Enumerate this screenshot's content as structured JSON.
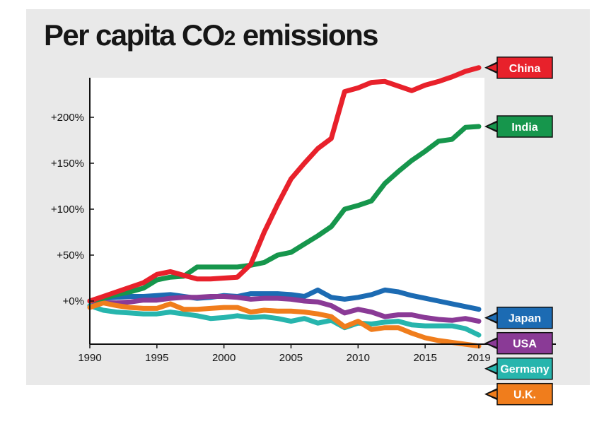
{
  "title_main": "Per capita CO",
  "title_sub": "2",
  "title_end": " emissions",
  "chart_data": {
    "type": "line",
    "title": "Per capita CO2 emissions",
    "xlabel": "",
    "ylabel": "",
    "xlim": [
      1990,
      2019
    ],
    "ylim": [
      -45,
      250
    ],
    "x_ticks": [
      1990,
      1995,
      2000,
      2005,
      2010,
      2015,
      2019
    ],
    "x_tick_labels": [
      "1990",
      "1995",
      "2000",
      "2005",
      "2010",
      "2015",
      "2019"
    ],
    "y_ticks": [
      0,
      50,
      100,
      150,
      200
    ],
    "y_tick_labels": [
      "+0%",
      "+50%",
      "+100%",
      "+150%",
      "+200%"
    ],
    "legend_placement": "right, label at end of each line",
    "series": [
      {
        "name": "China",
        "color": "#e8212b",
        "x": [
          1990,
          1991,
          1992,
          1993,
          1994,
          1995,
          1996,
          1997,
          1998,
          1999,
          2000,
          2001,
          2002,
          2003,
          2004,
          2005,
          2006,
          2007,
          2008,
          2009,
          2010,
          2011,
          2012,
          2013,
          2014,
          2015,
          2016,
          2017,
          2018,
          2019
        ],
        "values": [
          0,
          5,
          10,
          15,
          20,
          29,
          32,
          28,
          24,
          24,
          25,
          26,
          40,
          75,
          105,
          133,
          150,
          166,
          177,
          228,
          232,
          238,
          239,
          234,
          229,
          235,
          239,
          244,
          250,
          254
        ]
      },
      {
        "name": "India",
        "color": "#16964c",
        "x": [
          1990,
          1991,
          1992,
          1993,
          1994,
          1995,
          1996,
          1997,
          1998,
          1999,
          2000,
          2001,
          2002,
          2003,
          2004,
          2005,
          2006,
          2007,
          2008,
          2009,
          2010,
          2011,
          2012,
          2013,
          2014,
          2015,
          2016,
          2017,
          2018,
          2019
        ],
        "values": [
          0,
          3,
          7,
          10,
          14,
          23,
          26,
          27,
          37,
          37,
          37,
          37,
          39,
          42,
          50,
          53,
          62,
          71,
          81,
          100,
          104,
          109,
          128,
          141,
          153,
          163,
          174,
          176,
          189,
          190
        ]
      },
      {
        "name": "Japan",
        "color": "#1c6bb3",
        "x": [
          1990,
          1991,
          1992,
          1993,
          1994,
          1995,
          1996,
          1997,
          1998,
          1999,
          2000,
          2001,
          2002,
          2003,
          2004,
          2005,
          2006,
          2007,
          2008,
          2009,
          2010,
          2011,
          2012,
          2013,
          2014,
          2015,
          2016,
          2017,
          2018,
          2019
        ],
        "values": [
          0,
          3,
          4,
          5,
          5,
          6,
          7,
          5,
          3,
          4,
          6,
          5,
          8,
          8,
          8,
          7,
          5,
          12,
          4,
          2,
          4,
          7,
          12,
          10,
          6,
          3,
          0,
          -3,
          -6,
          -9
        ]
      },
      {
        "name": "USA",
        "color": "#8a3a96",
        "x": [
          1990,
          1991,
          1992,
          1993,
          1994,
          1995,
          1996,
          1997,
          1998,
          1999,
          2000,
          2001,
          2002,
          2003,
          2004,
          2005,
          2006,
          2007,
          2008,
          2009,
          2010,
          2011,
          2012,
          2013,
          2014,
          2015,
          2016,
          2017,
          2018,
          2019
        ],
        "values": [
          0,
          -2,
          -2,
          -1,
          1,
          1,
          3,
          4,
          4,
          5,
          5,
          4,
          2,
          3,
          3,
          2,
          0,
          -1,
          -5,
          -13,
          -9,
          -12,
          -17,
          -15,
          -15,
          -18,
          -20,
          -21,
          -19,
          -22
        ]
      },
      {
        "name": "Germany",
        "color": "#27b5ad",
        "x": [
          1990,
          1991,
          1992,
          1993,
          1994,
          1995,
          1996,
          1997,
          1998,
          1999,
          2000,
          2001,
          2002,
          2003,
          2004,
          2005,
          2006,
          2007,
          2008,
          2009,
          2010,
          2011,
          2012,
          2013,
          2014,
          2015,
          2016,
          2017,
          2018,
          2019
        ],
        "values": [
          -5,
          -10,
          -12,
          -13,
          -14,
          -14,
          -12,
          -14,
          -16,
          -19,
          -18,
          -16,
          -18,
          -17,
          -19,
          -22,
          -19,
          -24,
          -21,
          -29,
          -24,
          -25,
          -23,
          -22,
          -26,
          -27,
          -27,
          -27,
          -30,
          -37
        ]
      },
      {
        "name": "U.K.",
        "color": "#f07d1c",
        "x": [
          1990,
          1991,
          1992,
          1993,
          1994,
          1995,
          1996,
          1997,
          1998,
          1999,
          2000,
          2001,
          2002,
          2003,
          2004,
          2005,
          2006,
          2007,
          2008,
          2009,
          2010,
          2011,
          2012,
          2013,
          2014,
          2015,
          2016,
          2017,
          2018,
          2019
        ],
        "values": [
          -7,
          -2,
          -5,
          -7,
          -8,
          -8,
          -3,
          -9,
          -9,
          -8,
          -7,
          -7,
          -12,
          -10,
          -11,
          -11,
          -12,
          -14,
          -17,
          -28,
          -22,
          -31,
          -29,
          -29,
          -35,
          -40,
          -43,
          -45,
          -47,
          -49
        ]
      }
    ]
  }
}
